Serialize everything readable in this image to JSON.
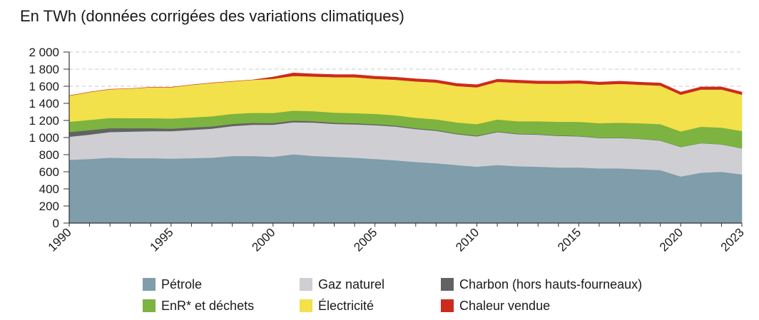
{
  "chart_data": {
    "type": "area",
    "stacked": true,
    "title": "En TWh (données corrigées des variations climatiques)",
    "xlabel": "",
    "ylabel": "",
    "x": [
      1990,
      1991,
      1992,
      1993,
      1994,
      1995,
      1996,
      1997,
      1998,
      1999,
      2000,
      2001,
      2002,
      2003,
      2004,
      2005,
      2006,
      2007,
      2008,
      2009,
      2010,
      2011,
      2012,
      2013,
      2014,
      2015,
      2016,
      2017,
      2018,
      2019,
      2020,
      2021,
      2022,
      2023
    ],
    "x_tick_labels": [
      "1990",
      "1995",
      "2000",
      "2005",
      "2010",
      "2015",
      "2020",
      "2023"
    ],
    "x_tick_values": [
      1990,
      1995,
      2000,
      2005,
      2010,
      2015,
      2020,
      2023
    ],
    "y_tick_labels": [
      "0",
      "200",
      "400",
      "600",
      "800",
      "1 000",
      "1 200",
      "1 400",
      "1 600",
      "1 800",
      "2 000"
    ],
    "y_tick_values": [
      0,
      200,
      400,
      600,
      800,
      1000,
      1200,
      1400,
      1600,
      1800,
      2000
    ],
    "ylim": [
      0,
      2000
    ],
    "xlim": [
      1990,
      2023
    ],
    "grid": "horizontal dashed",
    "legend_position": "bottom",
    "series": [
      {
        "name": "Pétrole",
        "color": "#7f9dab",
        "values": [
          740,
          750,
          765,
          760,
          760,
          755,
          760,
          765,
          785,
          785,
          775,
          805,
          785,
          775,
          765,
          750,
          735,
          715,
          700,
          680,
          660,
          680,
          665,
          660,
          650,
          650,
          640,
          640,
          630,
          620,
          545,
          590,
          600,
          570
        ]
      },
      {
        "name": "Gaz naturel",
        "color": "#cfcfd3",
        "values": [
          270,
          285,
          300,
          310,
          315,
          320,
          330,
          340,
          350,
          365,
          375,
          375,
          390,
          385,
          390,
          395,
          395,
          385,
          380,
          360,
          355,
          385,
          375,
          375,
          370,
          365,
          355,
          355,
          355,
          345,
          345,
          345,
          320,
          305
        ]
      },
      {
        "name": "Charbon (hors hauts-fourneaux)",
        "color": "#626262",
        "values": [
          55,
          52,
          45,
          40,
          35,
          30,
          28,
          26,
          24,
          22,
          20,
          18,
          16,
          14,
          13,
          12,
          11,
          10,
          9,
          8,
          8,
          7,
          6,
          6,
          5,
          5,
          4,
          4,
          3,
          3,
          2,
          2,
          2,
          2
        ]
      },
      {
        "name": "EnR* et déchets",
        "color": "#7cb341",
        "values": [
          120,
          120,
          120,
          118,
          118,
          118,
          118,
          118,
          118,
          118,
          118,
          118,
          118,
          118,
          118,
          120,
          120,
          122,
          125,
          130,
          135,
          140,
          145,
          150,
          160,
          165,
          170,
          175,
          180,
          190,
          180,
          190,
          195,
          200
        ]
      },
      {
        "name": "Électricité",
        "color": "#f2e14a",
        "values": [
          305,
          325,
          335,
          345,
          360,
          365,
          380,
          390,
          380,
          385,
          400,
          405,
          405,
          415,
          420,
          410,
          415,
          425,
          430,
          425,
          430,
          440,
          450,
          440,
          445,
          450,
          450,
          455,
          450,
          450,
          430,
          435,
          445,
          425
        ]
      },
      {
        "name": "Chaleur vendue",
        "color": "#cc2b1e",
        "values": [
          0,
          0,
          0,
          0,
          0,
          0,
          0,
          0,
          0,
          0,
          20,
          35,
          30,
          30,
          30,
          30,
          30,
          30,
          30,
          30,
          30,
          30,
          30,
          30,
          30,
          30,
          30,
          30,
          30,
          30,
          30,
          30,
          30,
          30
        ]
      }
    ]
  }
}
